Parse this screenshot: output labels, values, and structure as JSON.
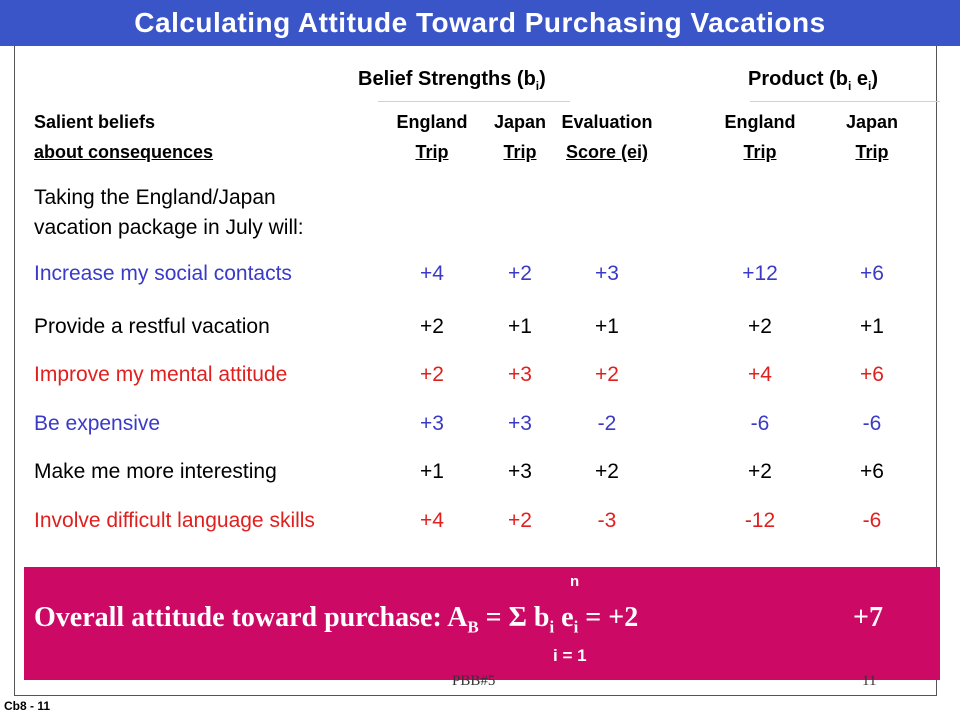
{
  "header": {
    "title": "Calculating Attitude Toward Purchasing Vacations"
  },
  "table": {
    "group_headers": [
      {
        "segments": [
          "Belief Strengths (b",
          "i",
          ")"
        ]
      },
      {
        "segments": [
          "Product (b",
          "i",
          " e",
          "i",
          ")"
        ]
      }
    ],
    "columns": [
      [
        "Salient beliefs",
        "about consequences"
      ],
      [
        "England",
        "Trip"
      ],
      [
        "Japan",
        "Trip"
      ],
      [
        "Evaluation",
        "Score (ei)"
      ],
      [
        "England",
        "Trip"
      ],
      [
        "Japan",
        "Trip"
      ]
    ],
    "intro": [
      "Taking the England/Japan",
      "vacation package in July will:"
    ],
    "rows": [
      {
        "label": "Increase my social contacts",
        "color": "#3a3ac8",
        "cells": [
          "+4",
          "+2",
          "+3",
          "+12",
          "+6"
        ]
      },
      {
        "label": "Provide a restful vacation",
        "color": "#000000",
        "cells": [
          "+2",
          "+1",
          "+1",
          "+2",
          "+1"
        ]
      },
      {
        "label": "Improve my mental attitude",
        "color": "#e0201e",
        "cells": [
          "+2",
          "+3",
          "+2",
          "+4",
          "+6"
        ]
      },
      {
        "label": "Be expensive",
        "color": "#3a3ac8",
        "cells": [
          "+3",
          "+3",
          "-2",
          "-6",
          "-6"
        ]
      },
      {
        "label": "Make me more interesting",
        "color": "#000000",
        "cells": [
          "+1",
          "+3",
          "+2",
          "+2",
          "+6"
        ]
      },
      {
        "label": "Involve difficult language skills",
        "color": "#e0201e",
        "cells": [
          "+4",
          "+2",
          "-3",
          "-12",
          "-6"
        ]
      }
    ]
  },
  "summary": {
    "upper_limit": "n",
    "segments": [
      "Overall attitude toward purchase:  A",
      "B",
      "  =  Σ  b",
      "i",
      " e",
      "i",
      "  =  "
    ],
    "totals": [
      "+2",
      "+7"
    ],
    "lower_limit": "i = 1"
  },
  "footer": {
    "center": "PBB#5",
    "page": "11",
    "code": "Cb8 - 11"
  }
}
